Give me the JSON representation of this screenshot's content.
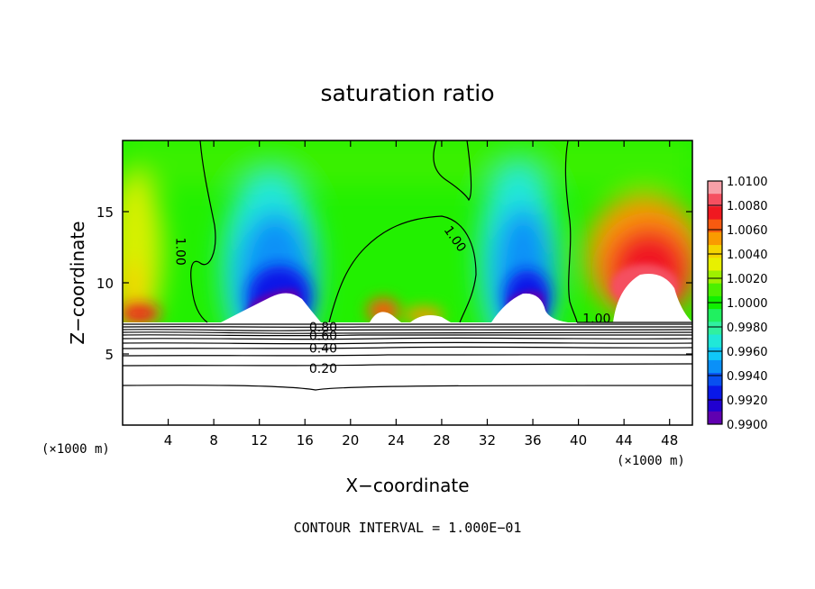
{
  "chart_data": {
    "type": "heatmap",
    "title": "saturation ratio",
    "xlabel": "X−coordinate",
    "ylabel": "Z−coordinate",
    "x_unit_left": "(×1000 m)",
    "x_unit_right": "(×1000 m)",
    "xlim": [
      0,
      50
    ],
    "ylim": [
      0,
      20
    ],
    "x_ticks": [
      4,
      8,
      12,
      16,
      20,
      24,
      28,
      32,
      36,
      40,
      44,
      48
    ],
    "y_ticks": [
      5,
      10,
      15
    ],
    "footer": "CONTOUR INTERVAL = 1.000E−01",
    "colorbar": {
      "min": 0.99,
      "max": 1.01,
      "labels": [
        "1.0100",
        "1.0080",
        "1.0060",
        "1.0040",
        "1.0020",
        "1.0000",
        "0.9980",
        "0.9960",
        "0.9940",
        "0.9920",
        "0.9900"
      ],
      "colors": [
        "#f7a0a8",
        "#f55060",
        "#f01820",
        "#f85a10",
        "#fa9a00",
        "#f6d400",
        "#e8f000",
        "#9ef000",
        "#4cf000",
        "#10f000",
        "#20f060",
        "#30f0a0",
        "#20e8d8",
        "#10c8f8",
        "#0a90f8",
        "#0850f0",
        "#0818e8",
        "#2000d0",
        "#6000b0"
      ]
    },
    "contour_labels": [
      {
        "text": "1.00",
        "x": 5.1,
        "y": 12.2,
        "rotate": 90
      },
      {
        "text": "1.00",
        "x": 29.2,
        "y": 13.1,
        "rotate": 55
      },
      {
        "text": "1.00",
        "x": 41.6,
        "y": 7.5,
        "rotate": 0
      },
      {
        "text": "0.80",
        "x": 17.6,
        "y": 6.9,
        "rotate": 0
      },
      {
        "text": "0.60",
        "x": 17.6,
        "y": 6.3,
        "rotate": 0
      },
      {
        "text": "0.40",
        "x": 17.6,
        "y": 5.4,
        "rotate": 0
      },
      {
        "text": "0.20",
        "x": 17.6,
        "y": 4.0,
        "rotate": 0
      }
    ]
  }
}
